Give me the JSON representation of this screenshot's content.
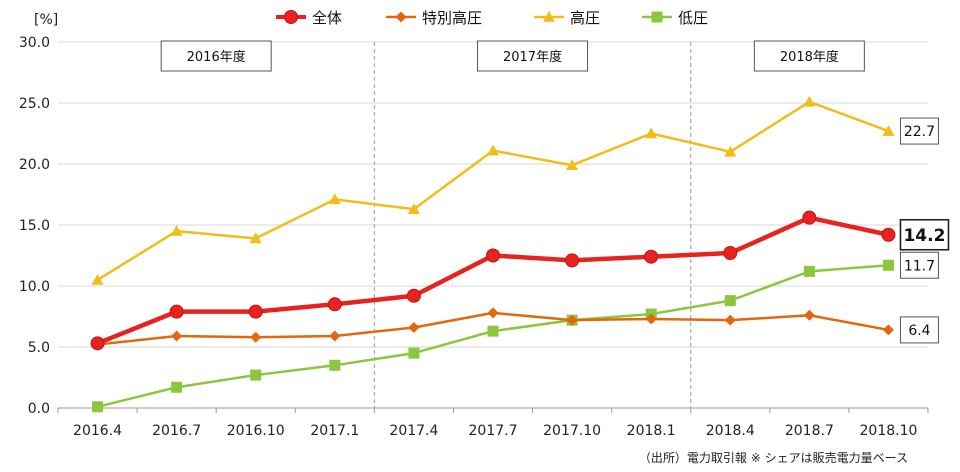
{
  "colors": {
    "total": "#e8231f",
    "extra_high": "#e2670e",
    "high": "#f2bc1b",
    "low": "#8cc63f",
    "grid": "#d9d9d9",
    "divider": "#9a9a9a"
  },
  "source_note": "（出所）電力取引報 ※ シェアは販売電力量ベース",
  "chart_data": {
    "type": "line",
    "ylabel": "[%]",
    "ylim": [
      0,
      30
    ],
    "yticks": [
      "0.0",
      "5.0",
      "10.0",
      "15.0",
      "20.0",
      "25.0",
      "30.0"
    ],
    "grid": "horizontal",
    "legend_position": "top",
    "categories": [
      "2016.4",
      "2016.7",
      "2016.10",
      "2017.1",
      "2017.4",
      "2017.7",
      "2017.10",
      "2018.1",
      "2018.4",
      "2018.7",
      "2018.10"
    ],
    "periods": [
      {
        "label": "2016年度",
        "start": 0,
        "end": 3
      },
      {
        "label": "2017年度",
        "start": 4,
        "end": 7
      },
      {
        "label": "2018年度",
        "start": 8,
        "end": 10
      }
    ],
    "series": [
      {
        "name": "全体",
        "key": "total",
        "marker": "circle",
        "values": [
          5.3,
          7.9,
          7.9,
          8.5,
          9.2,
          12.5,
          12.1,
          12.4,
          12.7,
          15.6,
          14.2
        ],
        "end_label": "14.2"
      },
      {
        "name": "特別高圧",
        "key": "extra_high",
        "marker": "diamond",
        "values": [
          5.2,
          5.9,
          5.8,
          5.9,
          6.6,
          7.8,
          7.2,
          7.3,
          7.2,
          7.6,
          6.4
        ],
        "end_label": "6.4"
      },
      {
        "name": "高圧",
        "key": "high",
        "marker": "triangle",
        "values": [
          10.5,
          14.5,
          13.9,
          17.1,
          16.3,
          21.1,
          19.9,
          22.5,
          21.0,
          25.1,
          22.7
        ],
        "end_label": "22.7"
      },
      {
        "name": "低圧",
        "key": "low",
        "marker": "square",
        "values": [
          0.1,
          1.7,
          2.7,
          3.5,
          4.5,
          6.3,
          7.2,
          7.7,
          8.8,
          11.2,
          11.7
        ],
        "end_label": "11.7"
      }
    ]
  }
}
